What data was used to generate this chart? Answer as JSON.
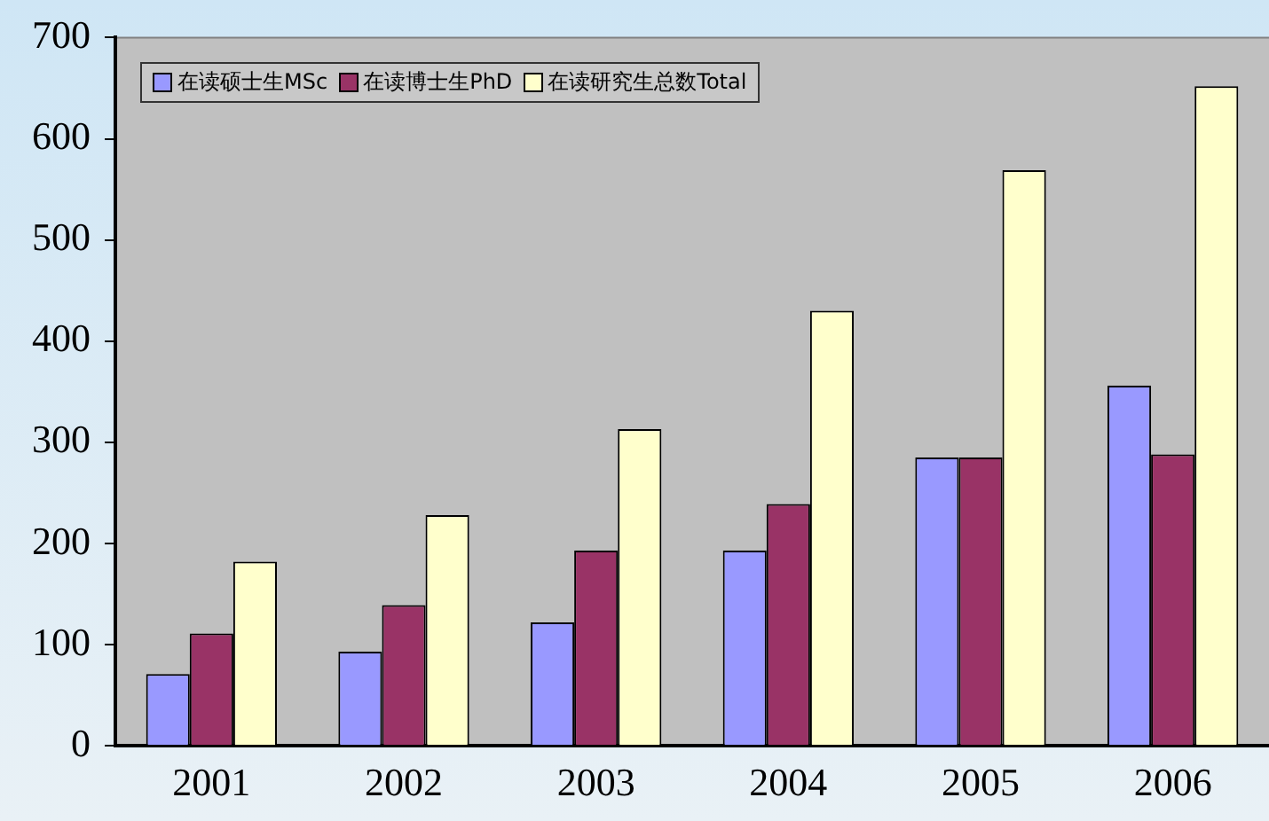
{
  "chart_data": {
    "type": "bar",
    "categories": [
      "2001",
      "2002",
      "2003",
      "2004",
      "2005",
      "2006"
    ],
    "series": [
      {
        "name": "在读硕士生MSc",
        "color": "#9999ff",
        "values": [
          71,
          93,
          122,
          193,
          285,
          356
        ]
      },
      {
        "name": "在读博士生PhD",
        "color": "#993366",
        "values": [
          111,
          139,
          193,
          239,
          285,
          288
        ]
      },
      {
        "name": "在读研究生总数Total",
        "color": "#ffffcc",
        "values": [
          182,
          228,
          313,
          430,
          569,
          652
        ]
      }
    ],
    "ylim": [
      0,
      700
    ],
    "yticks": [
      0,
      100,
      200,
      300,
      400,
      500,
      600,
      700
    ],
    "grid": false,
    "legend": "top left"
  }
}
